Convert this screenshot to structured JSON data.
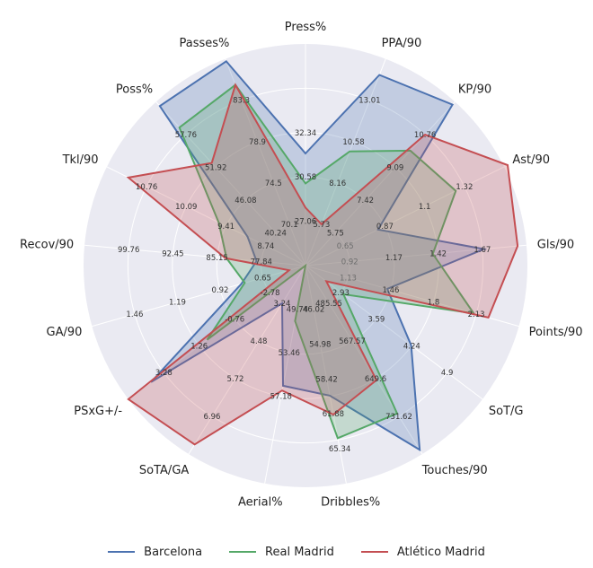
{
  "chart_data": {
    "type": "radar",
    "title": "",
    "legend_position": "bottom",
    "grid": true,
    "axes": [
      {
        "label": "Press%",
        "min": 24.0,
        "max": 37.0,
        "ticks": [
          "27.06",
          "30.58",
          "32.34"
        ]
      },
      {
        "label": "PPA/90",
        "min": 4.5,
        "max": 15.5,
        "ticks": [
          "5.73",
          "8.16",
          "10.58",
          "13.01"
        ]
      },
      {
        "label": "KP/90",
        "min": 6.0,
        "max": 12.5,
        "ticks": [
          "5.75",
          "7.42",
          "9.09",
          "10.76"
        ]
      },
      {
        "label": "Ast/90",
        "min": 0.45,
        "max": 1.6,
        "ticks": [
          "0.65",
          "0.87",
          "1.1",
          "1.32"
        ]
      },
      {
        "label": "Gls/90",
        "min": 0.7,
        "max": 1.95,
        "ticks": [
          "0.92",
          "1.17",
          "1.42",
          "1.67"
        ]
      },
      {
        "label": "Points/90",
        "min": 0.75,
        "max": 2.5,
        "ticks": [
          "1.13",
          "1.46",
          "1.8",
          "2.13"
        ]
      },
      {
        "label": "SoT/G",
        "min": 2.6,
        "max": 5.4,
        "ticks": [
          "2.93",
          "3.59",
          "4.24",
          "4.9"
        ]
      },
      {
        "label": "Touches/90",
        "min": 420.0,
        "max": 815.0,
        "ticks": [
          "485.55",
          "567.57",
          "649.6",
          "731.62"
        ]
      },
      {
        "label": "Dribbles%",
        "min": 40.0,
        "max": 72.0,
        "ticks": [
          "46.02",
          "54.98",
          "58.42",
          "61.88",
          "65.34"
        ]
      },
      {
        "label": "Aerial%",
        "min": 44.0,
        "max": 60.5,
        "ticks": [
          "49.74",
          "53.46",
          "57.18"
        ]
      },
      {
        "label": "SoTA/GA",
        "min": 2.1,
        "max": 8.0,
        "ticks": [
          "3.24",
          "4.48",
          "5.72",
          "6.96"
        ]
      },
      {
        "label": "PSxG+/-",
        "min": -3.0,
        "max": 4.2,
        "ticks": [
          "-2.78",
          "-0.76",
          "1.26",
          "3.28"
        ]
      },
      {
        "label": "GA/90",
        "min": 0.55,
        "max": 1.85,
        "ticks": [
          "0.65",
          "0.92",
          "1.19",
          "1.46"
        ]
      },
      {
        "label": "Recov/90",
        "min": 75.0,
        "max": 103.0,
        "ticks": [
          "77.84",
          "85.15",
          "92.45",
          "99.76"
        ]
      },
      {
        "label": "Tkl/90",
        "min": 7.4,
        "max": 12.0,
        "ticks": [
          "8.74",
          "9.41",
          "10.09",
          "10.76"
        ]
      },
      {
        "label": "Poss%",
        "min": 35.0,
        "max": 62.0,
        "ticks": [
          "40.24",
          "46.08",
          "51.92",
          "57.76"
        ]
      },
      {
        "label": "Passes%",
        "min": 68.0,
        "max": 85.5,
        "ticks": [
          "70.1",
          "74.5",
          "78.9",
          "83.3"
        ]
      }
    ],
    "series": [
      {
        "name": "Barcelona",
        "color": "#4c72b0",
        "values": [
          30.58,
          14.65,
          12.39,
          0.87,
          1.71,
          1.42,
          4.27,
          806.0,
          59.1,
          53.1,
          3.28,
          3.28,
          0.94,
          81.2,
          8.74,
          61.3,
          85.3
        ]
      },
      {
        "name": "Real Madrid",
        "color": "#55a868",
        "values": [
          28.82,
          10.58,
          10.56,
          1.32,
          1.42,
          2.13,
          3.2,
          730.0,
          65.34,
          48.2,
          2.1,
          1.0,
          0.92,
          85.0,
          9.41,
          57.76,
          83.3
        ]
      },
      {
        "name": "Atlético Madrid",
        "color": "#c44e52",
        "values": [
          27.4,
          6.7,
          11.2,
          1.62,
          1.9,
          2.25,
          2.93,
          660.0,
          61.88,
          53.46,
          7.7,
          4.2,
          0.65,
          85.15,
          11.5,
          51.92,
          83.3
        ]
      }
    ]
  }
}
